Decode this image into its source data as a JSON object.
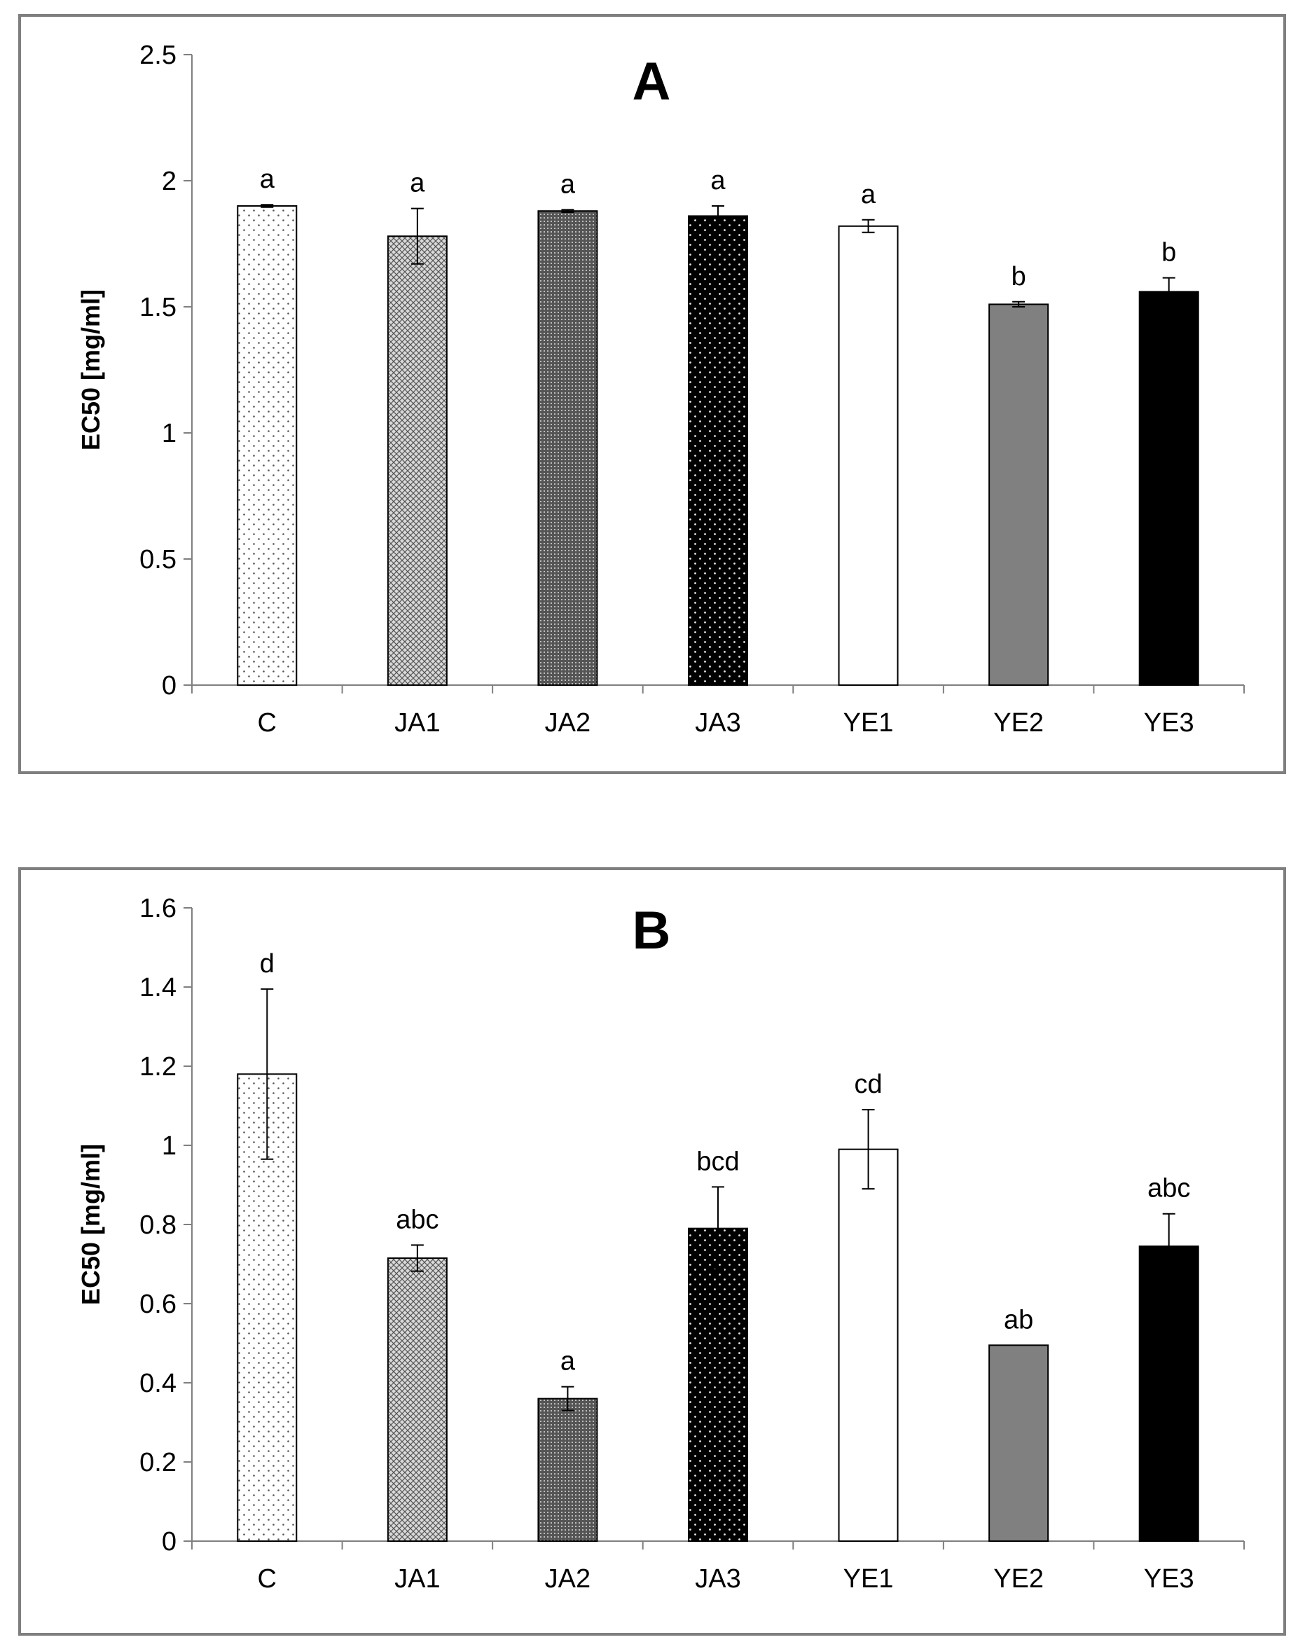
{
  "chart_data": [
    {
      "type": "bar",
      "title": "A",
      "xlabel": "",
      "ylabel": "EC50 [mg/ml]",
      "ylim": [
        0,
        2.5
      ],
      "yticks": [
        0,
        0.5,
        1,
        1.5,
        2,
        2.5
      ],
      "ytick_labels": [
        "0",
        "0.5",
        "1",
        "1.5",
        "2",
        "2.5"
      ],
      "categories": [
        "C",
        "JA1",
        "JA2",
        "JA3",
        "YE1",
        "YE2",
        "YE3"
      ],
      "values": [
        1.9,
        1.78,
        1.88,
        1.86,
        1.82,
        1.51,
        1.56
      ],
      "errors": [
        0.005,
        0.11,
        0.005,
        0.04,
        0.025,
        0.01,
        0.055
      ],
      "significance": [
        "a",
        "a",
        "a",
        "a",
        "a",
        "b",
        "b"
      ]
    },
    {
      "type": "bar",
      "title": "B",
      "xlabel": "",
      "ylabel": "EC50 [mg/ml]",
      "ylim": [
        0,
        1.6
      ],
      "yticks": [
        0,
        0.2,
        0.4,
        0.6,
        0.8,
        1,
        1.2,
        1.4,
        1.6
      ],
      "ytick_labels": [
        "0",
        "0.2",
        "0.4",
        "0.6",
        "0.8",
        "1",
        "1.2",
        "1.4",
        "1.6"
      ],
      "categories": [
        "C",
        "JA1",
        "JA2",
        "JA3",
        "YE1",
        "YE2",
        "YE3"
      ],
      "values": [
        1.18,
        0.715,
        0.36,
        0.79,
        0.99,
        0.495,
        0.745
      ],
      "errors": [
        0.215,
        0.033,
        0.03,
        0.105,
        0.1,
        0,
        0.082
      ],
      "significance": [
        "d",
        "abc",
        "a",
        "bcd",
        "cd",
        "ab",
        "abc"
      ]
    }
  ],
  "styles": {
    "axis_color": "#7f7f7f",
    "bar_stroke": "#000000",
    "error_color": "#000000",
    "bar_fills": [
      "light-dots",
      "crosshatch",
      "dense-grid",
      "dark-dots",
      "#ffffff",
      "#808080",
      "#000000"
    ]
  }
}
